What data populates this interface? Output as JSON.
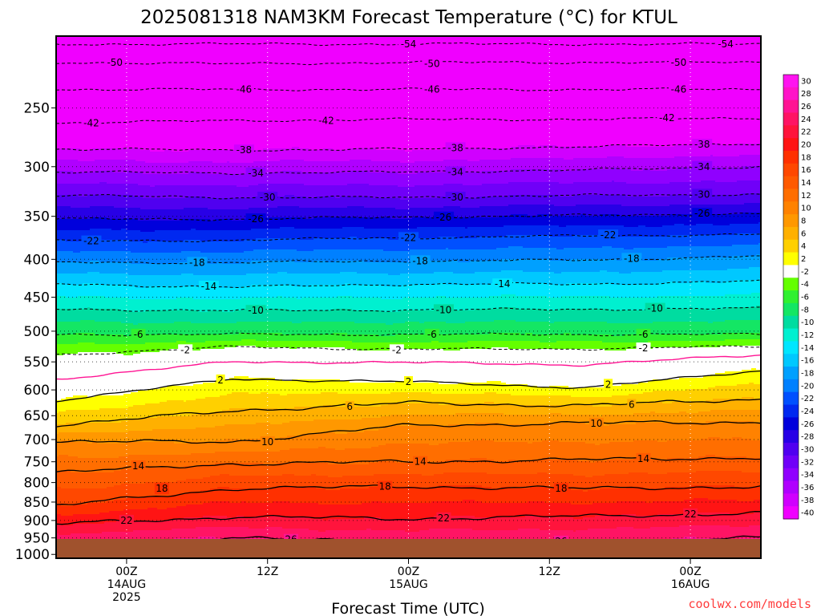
{
  "chart_data": {
    "type": "heatmap",
    "title": "2025081318 NAM3KM Forecast Temperature (°C) for KTUL",
    "xlabel": "Forecast Time (UTC)",
    "ylabel": "",
    "x_ticks": [
      {
        "hour": 6,
        "lines": [
          "00Z",
          "14AUG",
          "2025"
        ]
      },
      {
        "hour": 18,
        "lines": [
          "12Z"
        ]
      },
      {
        "hour": 30,
        "lines": [
          "00Z",
          "15AUG"
        ]
      },
      {
        "hour": 42,
        "lines": [
          "12Z"
        ]
      },
      {
        "hour": 54,
        "lines": [
          "00Z",
          "16AUG"
        ]
      }
    ],
    "xlim_hours": [
      0,
      60
    ],
    "y_ticks": [
      250,
      300,
      350,
      400,
      450,
      500,
      550,
      600,
      650,
      700,
      750,
      800,
      850,
      900,
      950,
      1000
    ],
    "ylim_hpa": [
      1012,
      200
    ],
    "y_scale": "log-pressure",
    "grid": true,
    "colorbar": {
      "labels": [
        "30",
        "28",
        "26",
        "24",
        "22",
        "20",
        "18",
        "16",
        "14",
        "12",
        "10",
        "8",
        "6",
        "4",
        "2",
        "-2",
        "-4",
        "-6",
        "-8",
        "-10",
        "-12",
        "-14",
        "-16",
        "-18",
        "-20",
        "-22",
        "-24",
        "-26",
        "-28",
        "-30",
        "-32",
        "-34",
        "-36",
        "-38",
        "-40"
      ],
      "colors": [
        "#ff14f0",
        "#ff14c8",
        "#ff1493",
        "#ff1464",
        "#ff143c",
        "#ff1414",
        "#ff3000",
        "#ff4800",
        "#ff5a00",
        "#ff6e00",
        "#ff8200",
        "#ff9800",
        "#ffb000",
        "#ffd000",
        "#ffff00",
        "#ffffff",
        "#64ff00",
        "#30f030",
        "#14e664",
        "#00dca0",
        "#00f0d0",
        "#00e6ff",
        "#00c8ff",
        "#00a0ff",
        "#0080ff",
        "#0050ff",
        "#0028f0",
        "#0000dc",
        "#2800e6",
        "#5000f0",
        "#7000f8",
        "#9000ff",
        "#b000ff",
        "#d000ff",
        "#f000ff"
      ]
    },
    "isotherms": [
      {
        "value": -54,
        "hpa": [
          205,
          205,
          205,
          205,
          205
        ]
      },
      {
        "value": -50,
        "hpa": [
          217,
          218,
          217,
          217,
          217
        ]
      },
      {
        "value": -46,
        "hpa": [
          236,
          236,
          236,
          236,
          236
        ]
      },
      {
        "value": -42,
        "hpa": [
          262,
          260,
          259,
          259,
          258
        ]
      },
      {
        "value": -38,
        "hpa": [
          284,
          285,
          284,
          282,
          279
        ]
      },
      {
        "value": -34,
        "hpa": [
          305,
          306,
          305,
          303,
          300
        ]
      },
      {
        "value": -30,
        "hpa": [
          328,
          330,
          330,
          328,
          327
        ]
      },
      {
        "value": -26,
        "hpa": [
          353,
          353,
          351,
          349,
          347
        ]
      },
      {
        "value": -22,
        "hpa": [
          378,
          377,
          374,
          372,
          370
        ]
      },
      {
        "value": -18,
        "hpa": [
          404,
          404,
          402,
          401,
          396
        ]
      },
      {
        "value": -14,
        "hpa": [
          432,
          436,
          432,
          432,
          428
        ]
      },
      {
        "value": -10,
        "hpa": [
          467,
          469,
          468,
          467,
          466
        ]
      },
      {
        "value": -6,
        "hpa": [
          505,
          505,
          505,
          505,
          505
        ]
      },
      {
        "value": -2,
        "hpa": [
          538,
          525,
          529,
          528,
          524
        ]
      },
      {
        "value": 0,
        "hpa": [
          580,
          550,
          551,
          555,
          538
        ]
      },
      {
        "value": 2,
        "hpa": [
          620,
          580,
          585,
          596,
          565
        ]
      },
      {
        "value": 6,
        "hpa": [
          670,
          640,
          625,
          630,
          617
        ]
      },
      {
        "value": 10,
        "hpa": [
          705,
          705,
          670,
          665,
          663
        ]
      },
      {
        "value": 14,
        "hpa": [
          775,
          755,
          750,
          745,
          740
        ]
      },
      {
        "value": 18,
        "hpa": [
          860,
          815,
          810,
          815,
          810
        ]
      },
      {
        "value": 22,
        "hpa": [
          910,
          890,
          895,
          888,
          880
        ]
      },
      {
        "value": 26,
        "hpa": [
          965,
          950,
          965,
          960,
          950
        ]
      }
    ],
    "contour_labels": [
      {
        "text": "-54",
        "hour": 30,
        "hpa": 205
      },
      {
        "text": "-54",
        "hour": 57,
        "hpa": 205
      },
      {
        "text": "-50",
        "hour": 5,
        "hpa": 217
      },
      {
        "text": "-50",
        "hour": 32,
        "hpa": 218
      },
      {
        "text": "-50",
        "hour": 53,
        "hpa": 217
      },
      {
        "text": "-46",
        "hour": 16,
        "hpa": 236
      },
      {
        "text": "-46",
        "hour": 32,
        "hpa": 236
      },
      {
        "text": "-46",
        "hour": 53,
        "hpa": 236
      },
      {
        "text": "-42",
        "hour": 3,
        "hpa": 262
      },
      {
        "text": "-42",
        "hour": 23,
        "hpa": 260
      },
      {
        "text": "-42",
        "hour": 52,
        "hpa": 258
      },
      {
        "text": "-38",
        "hour": 16,
        "hpa": 285
      },
      {
        "text": "-38",
        "hour": 34,
        "hpa": 283
      },
      {
        "text": "-38",
        "hour": 55,
        "hpa": 280
      },
      {
        "text": "-34",
        "hour": 17,
        "hpa": 306
      },
      {
        "text": "-34",
        "hour": 34,
        "hpa": 305
      },
      {
        "text": "-34",
        "hour": 55,
        "hpa": 300
      },
      {
        "text": "-30",
        "hour": 18,
        "hpa": 330
      },
      {
        "text": "-30",
        "hour": 34,
        "hpa": 330
      },
      {
        "text": "-30",
        "hour": 55,
        "hpa": 327
      },
      {
        "text": "-26",
        "hour": 17,
        "hpa": 353
      },
      {
        "text": "-26",
        "hour": 33,
        "hpa": 351
      },
      {
        "text": "-26",
        "hour": 55,
        "hpa": 347
      },
      {
        "text": "-22",
        "hour": 3,
        "hpa": 378
      },
      {
        "text": "-22",
        "hour": 30,
        "hpa": 374
      },
      {
        "text": "-22",
        "hour": 47,
        "hpa": 371
      },
      {
        "text": "-18",
        "hour": 12,
        "hpa": 404
      },
      {
        "text": "-18",
        "hour": 31,
        "hpa": 402
      },
      {
        "text": "-18",
        "hour": 49,
        "hpa": 399
      },
      {
        "text": "-14",
        "hour": 13,
        "hpa": 435
      },
      {
        "text": "-14",
        "hour": 38,
        "hpa": 432
      },
      {
        "text": "-10",
        "hour": 17,
        "hpa": 469
      },
      {
        "text": "-10",
        "hour": 33,
        "hpa": 468
      },
      {
        "text": "-10",
        "hour": 51,
        "hpa": 466
      },
      {
        "text": "-6",
        "hour": 7,
        "hpa": 505
      },
      {
        "text": "-6",
        "hour": 32,
        "hpa": 505
      },
      {
        "text": "-6",
        "hour": 50,
        "hpa": 505
      },
      {
        "text": "-2",
        "hour": 11,
        "hpa": 530
      },
      {
        "text": "-2",
        "hour": 29,
        "hpa": 530
      },
      {
        "text": "-2",
        "hour": 50,
        "hpa": 527
      },
      {
        "text": "2",
        "hour": 14,
        "hpa": 582
      },
      {
        "text": "2",
        "hour": 30,
        "hpa": 585
      },
      {
        "text": "2",
        "hour": 47,
        "hpa": 590
      },
      {
        "text": "6",
        "hour": 25,
        "hpa": 632
      },
      {
        "text": "6",
        "hour": 49,
        "hpa": 628
      },
      {
        "text": "10",
        "hour": 18,
        "hpa": 705
      },
      {
        "text": "10",
        "hour": 46,
        "hpa": 666
      },
      {
        "text": "14",
        "hour": 7,
        "hpa": 760
      },
      {
        "text": "14",
        "hour": 31,
        "hpa": 750
      },
      {
        "text": "14",
        "hour": 50,
        "hpa": 743
      },
      {
        "text": "18",
        "hour": 9,
        "hpa": 815
      },
      {
        "text": "18",
        "hour": 28,
        "hpa": 810
      },
      {
        "text": "18",
        "hour": 43,
        "hpa": 815
      },
      {
        "text": "22",
        "hour": 6,
        "hpa": 900
      },
      {
        "text": "22",
        "hour": 33,
        "hpa": 893
      },
      {
        "text": "22",
        "hour": 54,
        "hpa": 882
      },
      {
        "text": "26",
        "hour": 20,
        "hpa": 955
      },
      {
        "text": "26",
        "hour": 43,
        "hpa": 960
      }
    ],
    "freezing_line": {
      "value": 0,
      "hpa": [
        580,
        550,
        551,
        555,
        538
      ]
    },
    "warm_bottom_contours": [
      {
        "hour_start": 0,
        "hour_end": 8,
        "hpa": 988
      },
      {
        "hour_start": 25,
        "hour_end": 36,
        "hpa": 985
      },
      {
        "hour_start": 45,
        "hour_end": 58,
        "hpa": 982
      }
    ]
  },
  "credit": "coolwx.com/models",
  "colors": {
    "ground": "#a0522d",
    "freezing_line": "#ff1493",
    "credit": "#ff3c3c"
  }
}
